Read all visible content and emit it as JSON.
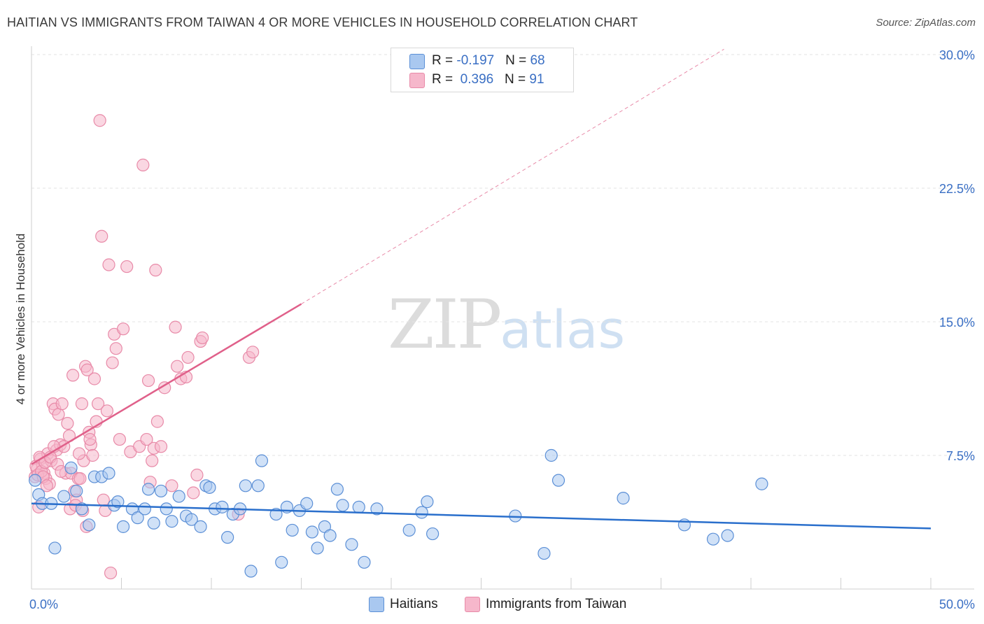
{
  "title": "HAITIAN VS IMMIGRANTS FROM TAIWAN 4 OR MORE VEHICLES IN HOUSEHOLD CORRELATION CHART",
  "source": "Source: ZipAtlas.com",
  "watermark": {
    "zip": "ZIP",
    "atlas": "atlas"
  },
  "colors": {
    "haitians_fill": "#a9c8f0",
    "haitians_stroke": "#5b8fd6",
    "haitians_line": "#2a6fcc",
    "taiwan_fill": "#f6b7cb",
    "taiwan_stroke": "#e88aa8",
    "taiwan_line": "#e0608a",
    "axis_text": "#3a6fc4"
  },
  "legend": {
    "rows": [
      {
        "r_label": "R = ",
        "r_value": "-0.197",
        "n_label": "N = ",
        "n_value": "68"
      },
      {
        "r_label": "R = ",
        "r_value": " 0.396",
        "n_label": "N = ",
        "n_value": "91"
      }
    ]
  },
  "bottom_legend": [
    "Haitians",
    "Immigrants from Taiwan"
  ],
  "chart_data": {
    "type": "scatter",
    "title": "HAITIAN VS IMMIGRANTS FROM TAIWAN 4 OR MORE VEHICLES IN HOUSEHOLD CORRELATION CHART",
    "xlabel": "",
    "ylabel": "4 or more Vehicles in Household",
    "xlim": [
      0,
      50
    ],
    "ylim": [
      0,
      30
    ],
    "x_ticks": [
      "0.0%",
      "50.0%"
    ],
    "y_ticks": [
      "7.5%",
      "15.0%",
      "22.5%",
      "30.0%"
    ],
    "y_tick_values": [
      7.5,
      15.0,
      22.5,
      30.0
    ],
    "grid": true,
    "legend_position": "top-center",
    "series": [
      {
        "name": "Haitians",
        "points": [
          [
            0.4,
            5.3
          ],
          [
            0.6,
            4.8
          ],
          [
            1.1,
            4.8
          ],
          [
            1.3,
            2.3
          ],
          [
            1.8,
            5.2
          ],
          [
            2.2,
            6.8
          ],
          [
            2.5,
            5.5
          ],
          [
            2.8,
            4.5
          ],
          [
            3.2,
            3.6
          ],
          [
            3.5,
            6.3
          ],
          [
            3.9,
            6.3
          ],
          [
            4.3,
            6.5
          ],
          [
            4.6,
            4.7
          ],
          [
            4.8,
            4.9
          ],
          [
            5.1,
            3.5
          ],
          [
            5.6,
            4.5
          ],
          [
            5.9,
            4.0
          ],
          [
            6.3,
            4.5
          ],
          [
            6.5,
            5.6
          ],
          [
            6.8,
            3.7
          ],
          [
            7.2,
            5.5
          ],
          [
            7.5,
            4.5
          ],
          [
            7.8,
            3.8
          ],
          [
            8.2,
            5.2
          ],
          [
            8.6,
            4.1
          ],
          [
            8.9,
            3.9
          ],
          [
            9.4,
            3.5
          ],
          [
            9.7,
            5.8
          ],
          [
            9.9,
            5.7
          ],
          [
            10.2,
            4.5
          ],
          [
            10.6,
            4.6
          ],
          [
            10.9,
            2.9
          ],
          [
            11.2,
            4.2
          ],
          [
            11.6,
            4.5
          ],
          [
            11.9,
            5.8
          ],
          [
            12.2,
            1.0
          ],
          [
            12.6,
            5.8
          ],
          [
            12.8,
            7.2
          ],
          [
            13.6,
            4.2
          ],
          [
            13.9,
            1.5
          ],
          [
            14.2,
            4.6
          ],
          [
            14.5,
            3.3
          ],
          [
            14.9,
            4.4
          ],
          [
            15.3,
            4.8
          ],
          [
            15.6,
            3.2
          ],
          [
            15.9,
            2.3
          ],
          [
            16.3,
            3.5
          ],
          [
            16.6,
            3.0
          ],
          [
            17.0,
            5.6
          ],
          [
            17.3,
            4.7
          ],
          [
            17.8,
            2.5
          ],
          [
            18.2,
            4.6
          ],
          [
            18.5,
            1.5
          ],
          [
            19.2,
            4.5
          ],
          [
            21.0,
            3.3
          ],
          [
            21.7,
            4.3
          ],
          [
            22.0,
            4.9
          ],
          [
            22.3,
            3.1
          ],
          [
            26.9,
            4.1
          ],
          [
            28.5,
            2.0
          ],
          [
            28.9,
            7.5
          ],
          [
            29.3,
            6.1
          ],
          [
            32.9,
            5.1
          ],
          [
            36.3,
            3.6
          ],
          [
            37.9,
            2.8
          ],
          [
            38.7,
            3.0
          ],
          [
            40.6,
            5.9
          ],
          [
            0.2,
            6.1
          ]
        ],
        "trend": {
          "x": [
            0,
            50
          ],
          "y": [
            4.8,
            3.4
          ]
        }
      },
      {
        "name": "Immigrants from Taiwan",
        "points": [
          [
            0.2,
            6.3
          ],
          [
            0.3,
            6.7
          ],
          [
            0.4,
            4.6
          ],
          [
            0.5,
            7.3
          ],
          [
            0.6,
            7.0
          ],
          [
            0.7,
            6.5
          ],
          [
            0.8,
            6.2
          ],
          [
            0.9,
            7.6
          ],
          [
            1.0,
            5.9
          ],
          [
            1.1,
            7.2
          ],
          [
            1.2,
            10.4
          ],
          [
            1.3,
            10.1
          ],
          [
            1.4,
            7.8
          ],
          [
            1.5,
            9.8
          ],
          [
            1.6,
            8.1
          ],
          [
            1.7,
            10.4
          ],
          [
            1.8,
            8.0
          ],
          [
            1.9,
            6.5
          ],
          [
            2.0,
            9.3
          ],
          [
            2.1,
            8.6
          ],
          [
            2.2,
            6.5
          ],
          [
            2.3,
            12.0
          ],
          [
            2.4,
            5.5
          ],
          [
            2.5,
            5.0
          ],
          [
            2.6,
            6.2
          ],
          [
            2.7,
            6.2
          ],
          [
            2.8,
            10.4
          ],
          [
            2.9,
            7.2
          ],
          [
            3.0,
            12.5
          ],
          [
            3.1,
            12.3
          ],
          [
            3.2,
            8.8
          ],
          [
            3.3,
            8.1
          ],
          [
            3.4,
            7.5
          ],
          [
            3.5,
            11.8
          ],
          [
            3.6,
            9.4
          ],
          [
            3.7,
            10.4
          ],
          [
            3.8,
            26.3
          ],
          [
            3.9,
            19.8
          ],
          [
            4.0,
            5.0
          ],
          [
            4.1,
            4.4
          ],
          [
            4.2,
            10.0
          ],
          [
            4.3,
            18.2
          ],
          [
            4.5,
            12.7
          ],
          [
            4.6,
            14.3
          ],
          [
            4.7,
            13.5
          ],
          [
            4.9,
            8.4
          ],
          [
            5.1,
            14.6
          ],
          [
            5.3,
            18.1
          ],
          [
            5.5,
            7.7
          ],
          [
            6.0,
            8.0
          ],
          [
            6.2,
            23.8
          ],
          [
            6.4,
            8.4
          ],
          [
            6.5,
            11.7
          ],
          [
            6.6,
            6.0
          ],
          [
            6.7,
            7.2
          ],
          [
            6.8,
            7.9
          ],
          [
            6.9,
            17.9
          ],
          [
            7.0,
            9.4
          ],
          [
            7.2,
            8.0
          ],
          [
            7.4,
            11.3
          ],
          [
            7.8,
            5.8
          ],
          [
            8.0,
            14.7
          ],
          [
            8.1,
            12.5
          ],
          [
            8.3,
            11.8
          ],
          [
            8.6,
            11.9
          ],
          [
            8.7,
            13.0
          ],
          [
            9.0,
            5.4
          ],
          [
            9.2,
            6.4
          ],
          [
            9.4,
            13.9
          ],
          [
            9.5,
            14.1
          ],
          [
            11.5,
            4.2
          ],
          [
            12.1,
            13.0
          ],
          [
            12.3,
            13.3
          ],
          [
            0.25,
            6.9
          ],
          [
            0.35,
            6.4
          ],
          [
            0.45,
            7.4
          ],
          [
            0.55,
            6.6
          ],
          [
            0.65,
            6.3
          ],
          [
            0.75,
            7.1
          ],
          [
            0.85,
            5.8
          ],
          [
            1.05,
            7.4
          ],
          [
            1.25,
            8.0
          ],
          [
            1.45,
            7.0
          ],
          [
            1.65,
            6.6
          ],
          [
            2.15,
            4.5
          ],
          [
            2.45,
            4.7
          ],
          [
            2.65,
            7.6
          ],
          [
            2.85,
            4.4
          ],
          [
            3.05,
            3.5
          ],
          [
            3.25,
            8.4
          ],
          [
            4.4,
            0.9
          ]
        ],
        "trend": {
          "x": [
            0,
            15
          ],
          "y": [
            7.0,
            16.0
          ]
        },
        "trend_extension": {
          "x": [
            15,
            38.5
          ],
          "y": [
            16.0,
            30.3
          ]
        }
      }
    ]
  }
}
